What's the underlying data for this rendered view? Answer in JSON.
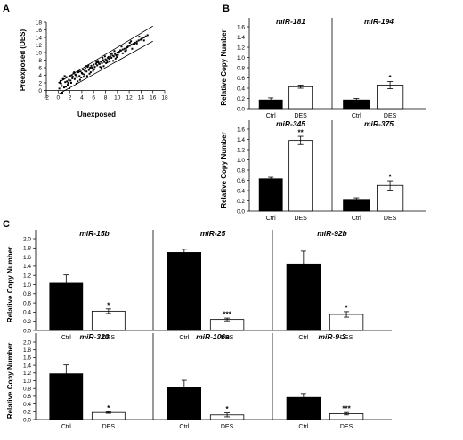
{
  "panel_letters": [
    "A",
    "B",
    "C"
  ],
  "chart_data": [
    {
      "type": "scatter",
      "panel": "A",
      "title": "",
      "xlabel": "Unexposed",
      "ylabel": "Preexposed (DES)",
      "xlim": [
        -2,
        18
      ],
      "ylim": [
        -2,
        18
      ],
      "xticks": [
        -2,
        0,
        2,
        4,
        6,
        8,
        10,
        12,
        14,
        16,
        18
      ],
      "yticks": [
        0,
        2,
        4,
        6,
        8,
        10,
        12,
        14,
        16,
        18
      ],
      "xtick_labels": [
        "-2",
        "0",
        "2",
        "4",
        "6",
        "8",
        "10",
        "12",
        "14",
        "16",
        "18"
      ],
      "ytick_labels": [
        "0",
        "2",
        "4",
        "6",
        "8",
        "10",
        "12",
        "14",
        "16",
        "18"
      ],
      "reference_lines": [
        {
          "x": [
            0,
            16
          ],
          "y": [
            2,
            17
          ]
        },
        {
          "x": [
            0,
            16
          ],
          "y": [
            -1,
            13
          ]
        }
      ],
      "x": [
        0.2,
        0.4,
        0.6,
        0.8,
        1.0,
        1.2,
        1.4,
        1.6,
        1.8,
        2.0,
        2.2,
        2.4,
        2.6,
        2.8,
        3.0,
        3.2,
        3.4,
        3.6,
        3.8,
        4.0,
        4.2,
        4.4,
        4.6,
        4.8,
        5.0,
        5.2,
        5.4,
        5.6,
        5.8,
        6.0,
        6.2,
        6.4,
        6.6,
        6.8,
        7.0,
        7.2,
        7.4,
        7.6,
        7.8,
        8.0,
        8.2,
        8.4,
        8.6,
        8.8,
        9.0,
        9.2,
        9.4,
        9.6,
        9.8,
        10.0,
        10.3,
        10.6,
        10.9,
        11.2,
        11.5,
        11.8,
        12.1,
        12.4,
        12.7,
        13.0,
        13.3,
        13.6,
        13.9,
        14.2,
        14.5,
        14.8,
        15.1,
        0.5,
        1.3,
        2.1,
        2.9,
        3.7,
        4.5,
        5.3,
        6.1,
        6.9,
        7.7,
        8.5,
        9.3,
        10.1,
        10.9,
        11.7,
        12.5,
        13.3,
        14.1,
        0.9,
        1.7,
        2.5,
        3.3,
        4.1,
        4.9,
        5.7,
        6.5,
        7.3,
        8.1,
        8.9,
        9.7,
        10.5,
        11.3,
        12.1,
        12.9,
        13.7,
        14.5,
        0.3,
        1.1,
        1.9,
        2.7,
        3.5,
        4.3,
        5.1,
        5.9,
        6.7,
        7.5,
        8.3,
        9.1,
        9.9,
        10.7,
        11.5,
        12.3,
        0.7,
        1.5,
        2.3,
        3.1,
        3.9,
        4.7,
        5.5,
        6.3,
        7.1,
        7.9,
        8.7,
        9.5
      ],
      "y": [
        0.5,
        2.5,
        1.2,
        3.0,
        0.8,
        2.2,
        3.5,
        1.5,
        2.8,
        3.8,
        2.0,
        3.2,
        4.5,
        3.0,
        4.0,
        3.5,
        4.8,
        3.8,
        5.0,
        4.6,
        5.5,
        4.2,
        5.8,
        5.0,
        6.2,
        5.4,
        6.0,
        6.5,
        5.8,
        6.8,
        6.2,
        7.0,
        6.6,
        7.4,
        7.0,
        7.6,
        7.2,
        8.0,
        7.5,
        8.2,
        8.0,
        8.6,
        8.3,
        9.0,
        8.6,
        9.2,
        9.0,
        9.6,
        9.3,
        10.0,
        10.2,
        10.5,
        10.8,
        11.0,
        11.2,
        11.6,
        11.8,
        12.1,
        12.3,
        12.6,
        12.9,
        13.2,
        13.4,
        13.8,
        14.0,
        14.3,
        14.6,
        1.8,
        1.0,
        2.6,
        4.2,
        2.8,
        5.2,
        4.4,
        5.6,
        7.0,
        6.4,
        8.8,
        7.8,
        9.4,
        9.8,
        11.4,
        11.0,
        12.4,
        13.6,
        3.0,
        2.0,
        3.6,
        2.4,
        4.4,
        3.8,
        6.0,
        7.4,
        6.0,
        7.2,
        9.6,
        8.4,
        10.6,
        10.4,
        12.6,
        12.2,
        14.2,
        13.2,
        2.0,
        3.8,
        0.6,
        4.8,
        5.0,
        3.6,
        6.6,
        5.2,
        7.8,
        8.6,
        7.4,
        9.8,
        8.8,
        11.6,
        10.6,
        13.0,
        -0.6,
        2.4,
        4.0,
        1.8,
        3.4,
        6.4,
        4.8,
        7.8,
        6.2,
        9.0,
        7.6,
        10.4
      ]
    },
    {
      "type": "bar",
      "panel": "B",
      "title": "miR-181",
      "categories": [
        "Ctrl",
        "DES"
      ],
      "values": [
        0.17,
        0.43
      ],
      "errors": [
        0.04,
        0.03
      ],
      "fill": [
        "#000000",
        "#ffffff"
      ],
      "significance": [
        "",
        ""
      ],
      "ylabel": "Relative Copy Number",
      "ylim": [
        0,
        1.6
      ],
      "yticks": [
        0,
        0.2,
        0.4,
        0.6,
        0.8,
        1.0,
        1.2,
        1.4,
        1.6
      ],
      "ytick_labels": [
        "0.0",
        "0.2",
        "0.4",
        "0.6",
        "0.8",
        "1.0",
        "1.2",
        "1.4",
        "1.6"
      ]
    },
    {
      "type": "bar",
      "panel": "B",
      "title": "miR-194",
      "categories": [
        "Ctrl",
        "DES"
      ],
      "values": [
        0.17,
        0.46
      ],
      "errors": [
        0.03,
        0.07
      ],
      "fill": [
        "#000000",
        "#ffffff"
      ],
      "significance": [
        "",
        "*"
      ],
      "ylabel": "",
      "ylim": [
        0,
        1.6
      ],
      "yticks": [
        0,
        0.2,
        0.4,
        0.6,
        0.8,
        1.0,
        1.2,
        1.4,
        1.6
      ],
      "ytick_labels": []
    },
    {
      "type": "bar",
      "panel": "B",
      "title": "miR-345",
      "categories": [
        "Ctrl",
        "DES"
      ],
      "values": [
        0.63,
        1.38
      ],
      "errors": [
        0.03,
        0.08
      ],
      "fill": [
        "#000000",
        "#ffffff"
      ],
      "significance": [
        "",
        "**"
      ],
      "ylabel": "Relative Copy Number",
      "ylim": [
        0,
        1.6
      ],
      "yticks": [
        0,
        0.2,
        0.4,
        0.6,
        0.8,
        1.0,
        1.2,
        1.4,
        1.6
      ],
      "ytick_labels": [
        "0.0",
        "0.2",
        "0.4",
        "0.6",
        "0.8",
        "1.0",
        "1.2",
        "1.4",
        "1.6"
      ]
    },
    {
      "type": "bar",
      "panel": "B",
      "title": "miR-375",
      "categories": [
        "Ctrl",
        "DES"
      ],
      "values": [
        0.23,
        0.5
      ],
      "errors": [
        0.03,
        0.09
      ],
      "fill": [
        "#000000",
        "#ffffff"
      ],
      "significance": [
        "",
        "*"
      ],
      "ylabel": "",
      "ylim": [
        0,
        1.6
      ],
      "yticks": [
        0,
        0.2,
        0.4,
        0.6,
        0.8,
        1.0,
        1.2,
        1.4,
        1.6
      ],
      "ytick_labels": []
    },
    {
      "type": "bar",
      "panel": "C",
      "title": "miR-15b",
      "categories": [
        "Ctrl",
        "DES"
      ],
      "values": [
        1.03,
        0.42
      ],
      "errors": [
        0.18,
        0.05
      ],
      "fill": [
        "#000000",
        "#ffffff"
      ],
      "significance": [
        "",
        "*"
      ],
      "ylabel": "Relative Copy Number",
      "ylim": [
        0,
        2.0
      ],
      "yticks": [
        0,
        0.2,
        0.4,
        0.6,
        0.8,
        1.0,
        1.2,
        1.4,
        1.6,
        1.8,
        2.0
      ],
      "ytick_labels": [
        "0.0",
        "0.2",
        "0.4",
        "0.6",
        "0.8",
        "1.0",
        "1.2",
        "1.4",
        "1.6",
        "1.8",
        "2.0"
      ]
    },
    {
      "type": "bar",
      "panel": "C",
      "title": "miR-25",
      "categories": [
        "Ctrl",
        "DES"
      ],
      "values": [
        1.7,
        0.24
      ],
      "errors": [
        0.07,
        0.03
      ],
      "fill": [
        "#000000",
        "#ffffff"
      ],
      "significance": [
        "",
        "***"
      ],
      "ylabel": "",
      "ylim": [
        0,
        2.0
      ],
      "yticks": [
        0,
        0.2,
        0.4,
        0.6,
        0.8,
        1.0,
        1.2,
        1.4,
        1.6,
        1.8,
        2.0
      ],
      "ytick_labels": []
    },
    {
      "type": "bar",
      "panel": "C",
      "title": "miR-92b",
      "categories": [
        "Ctrl",
        "DES"
      ],
      "values": [
        1.45,
        0.35
      ],
      "errors": [
        0.28,
        0.06
      ],
      "fill": [
        "#000000",
        "#ffffff"
      ],
      "significance": [
        "",
        "*"
      ],
      "ylabel": "",
      "ylim": [
        0,
        2.0
      ],
      "yticks": [
        0,
        0.2,
        0.4,
        0.6,
        0.8,
        1.0,
        1.2,
        1.4,
        1.6,
        1.8,
        2.0
      ],
      "ytick_labels": []
    },
    {
      "type": "bar",
      "panel": "C",
      "title": "miR-320",
      "categories": [
        "Ctrl",
        "DES"
      ],
      "values": [
        1.18,
        0.18
      ],
      "errors": [
        0.23,
        0.02
      ],
      "fill": [
        "#000000",
        "#ffffff"
      ],
      "significance": [
        "",
        "*"
      ],
      "ylabel": "Relative Copy Number",
      "ylim": [
        0,
        2.0
      ],
      "yticks": [
        0,
        0.2,
        0.4,
        0.6,
        0.8,
        1.0,
        1.2,
        1.4,
        1.6,
        1.8,
        2.0
      ],
      "ytick_labels": [
        "0.0",
        "0.2",
        "0.4",
        "0.6",
        "0.8",
        "1.0",
        "1.2",
        "1.4",
        "1.6",
        "1.8",
        "2.0"
      ]
    },
    {
      "type": "bar",
      "panel": "C",
      "title": "miR-106a",
      "categories": [
        "Ctrl",
        "DES"
      ],
      "values": [
        0.83,
        0.12
      ],
      "errors": [
        0.18,
        0.05
      ],
      "fill": [
        "#000000",
        "#ffffff"
      ],
      "significance": [
        "",
        "*"
      ],
      "ylabel": "",
      "ylim": [
        0,
        2.0
      ],
      "yticks": [
        0,
        0.2,
        0.4,
        0.6,
        0.8,
        1.0,
        1.2,
        1.4,
        1.6,
        1.8,
        2.0
      ],
      "ytick_labels": []
    },
    {
      "type": "bar",
      "panel": "C",
      "title": "miR-9-3",
      "categories": [
        "Ctrl",
        "DES"
      ],
      "values": [
        0.57,
        0.15
      ],
      "errors": [
        0.1,
        0.03
      ],
      "fill": [
        "#000000",
        "#ffffff"
      ],
      "significance": [
        "",
        "***"
      ],
      "ylabel": "",
      "ylim": [
        0,
        2.0
      ],
      "yticks": [
        0,
        0.2,
        0.4,
        0.6,
        0.8,
        1.0,
        1.2,
        1.4,
        1.6,
        1.8,
        2.0
      ],
      "ytick_labels": []
    }
  ]
}
